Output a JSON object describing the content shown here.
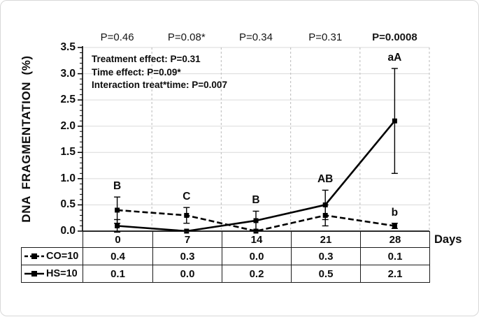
{
  "chart_data": {
    "type": "line",
    "ylabel": "DNA FRAGMENTATION (%)",
    "xlabel": "Days",
    "ylim": [
      0,
      3.5
    ],
    "ytick_step": 0.5,
    "ytick_labels": [
      "0.0",
      "0.5",
      "1.0",
      "1.5",
      "2.0",
      "2.5",
      "3.0",
      "3.5"
    ],
    "categories": [
      "0",
      "7",
      "14",
      "21",
      "28"
    ],
    "grid": {
      "horizontal": true,
      "vertical": "dashed",
      "legend_position": "table-left"
    },
    "series": [
      {
        "name": "CO=10",
        "style": "dashed",
        "marker": "square",
        "legend_icon": "dashed-line-square-marker",
        "values": [
          0.4,
          0.3,
          0.0,
          0.3,
          0.1
        ],
        "errors": [
          0.25,
          0.15,
          0,
          0.2,
          0.05
        ]
      },
      {
        "name": "HS=10",
        "style": "solid",
        "marker": "square",
        "legend_icon": "solid-line-square-marker",
        "values": [
          0.1,
          0.0,
          0.2,
          0.5,
          2.1
        ],
        "errors": [
          0.12,
          0,
          0.18,
          0.28,
          1.0
        ]
      }
    ],
    "p_values": [
      {
        "label": "P=0.46",
        "bold": false
      },
      {
        "label": "P=0.08*",
        "bold": false
      },
      {
        "label": "P=0.34",
        "bold": false
      },
      {
        "label": "P=0.31",
        "bold": false
      },
      {
        "label": "P=0.0008",
        "bold": true
      }
    ],
    "point_labels": [
      {
        "day": 0,
        "series": 0,
        "text": "B"
      },
      {
        "day": 1,
        "series": 0,
        "text": "C"
      },
      {
        "day": 2,
        "series": 1,
        "text": "B"
      },
      {
        "day": 3,
        "series": 1,
        "text": "AB"
      },
      {
        "day": 4,
        "series": 1,
        "text": "aA"
      },
      {
        "day": 4,
        "series": 0,
        "text": "b"
      }
    ],
    "stats_box": [
      "Treatment effect: P=0.31",
      "Time effect: P=0.09*",
      "Interaction treat*time: P=0.007"
    ],
    "colors": {
      "line": "#000000",
      "grid": "#dadada",
      "grid_dashed": "#c4c4c4"
    }
  },
  "table": {
    "x_axis_row": [
      "0",
      "7",
      "14",
      "21",
      "28"
    ],
    "rows": [
      {
        "legend": "CO=10",
        "values": [
          "0.4",
          "0.3",
          "0.0",
          "0.3",
          "0.1"
        ]
      },
      {
        "legend": "HS=10",
        "values": [
          "0.1",
          "0.0",
          "0.2",
          "0.5",
          "2.1"
        ]
      }
    ]
  }
}
